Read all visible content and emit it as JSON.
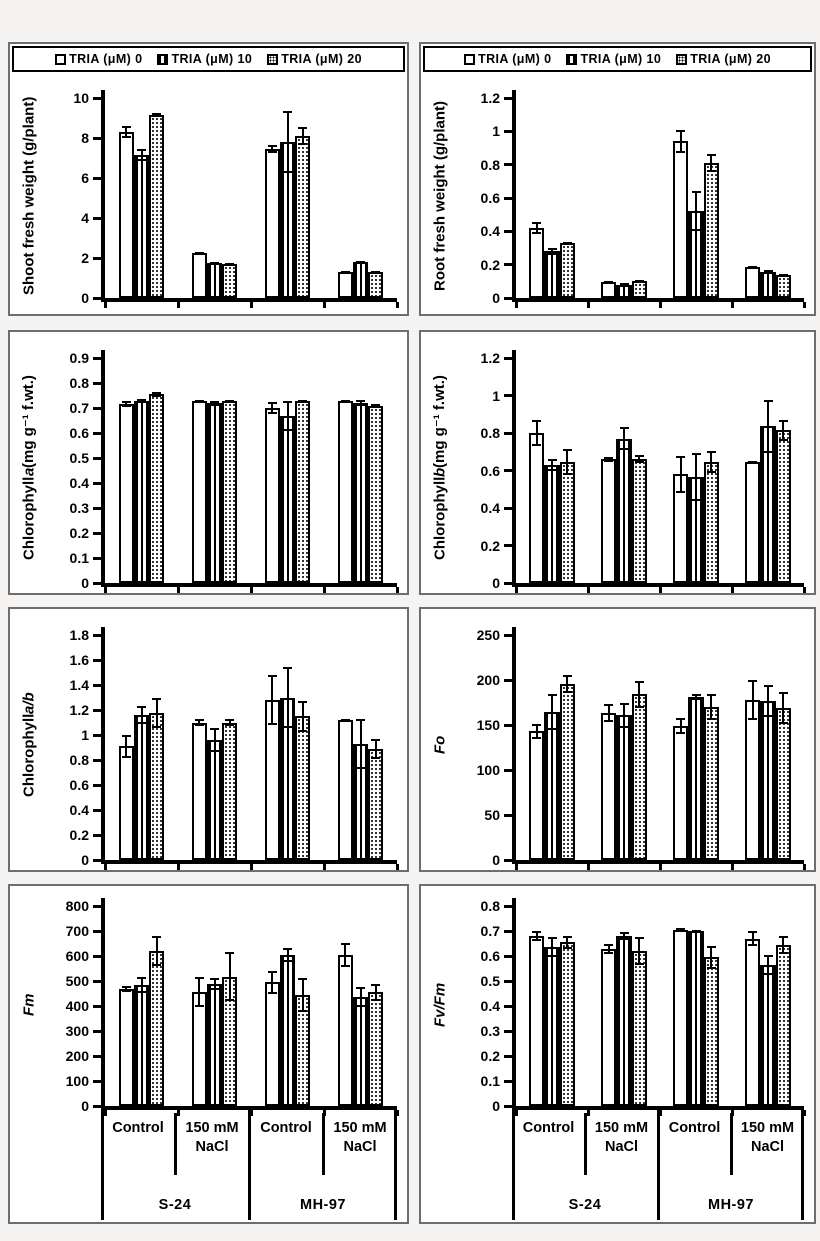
{
  "page": {
    "background": "#f5f4f2",
    "panel_background": "#ffffff",
    "panel_border": "#6e6e6e",
    "ink": "#000000"
  },
  "legend": {
    "items": [
      {
        "label": "TRIA (μM) 0",
        "pattern": "plain",
        "marker": "open-square"
      },
      {
        "label": "TRIA (μM) 10",
        "pattern": "vstripes",
        "marker": "vertical-striped-square"
      },
      {
        "label": "TRIA (μM) 20",
        "pattern": "dots",
        "marker": "dotted-square"
      }
    ]
  },
  "x_axis": {
    "treatments": [
      "Control",
      "150 mM\nNaCl",
      "Control",
      "150 mM\nNaCl"
    ],
    "cultivars": [
      "S-24",
      "MH-97"
    ]
  },
  "chart_data": [
    {
      "id": "shoot_fresh_weight",
      "type": "bar",
      "position": "row1-left",
      "ylabel_parts": [
        {
          "text": "Shoot fresh weight (g/plant)",
          "italic": false
        }
      ],
      "ylim": [
        0,
        10
      ],
      "ytick_values": [
        0,
        2,
        4,
        6,
        8,
        10
      ],
      "ytick_labels": [
        "0",
        "2",
        "4",
        "6",
        "8",
        "10"
      ],
      "categories": [
        "S-24 Control",
        "S-24 150 mM NaCl",
        "MH-97 Control",
        "MH-97 150 mM NaCl"
      ],
      "series": [
        {
          "name": "TRIA (μM) 0",
          "values": [
            8.3,
            2.25,
            7.45,
            1.3
          ],
          "errors": [
            0.3,
            0.05,
            0.2,
            0.05
          ]
        },
        {
          "name": "TRIA (μM) 10",
          "values": [
            7.15,
            1.75,
            7.8,
            1.8
          ],
          "errors": [
            0.3,
            0.05,
            1.55,
            0.05
          ]
        },
        {
          "name": "TRIA (μM) 20",
          "values": [
            9.15,
            1.7,
            8.1,
            1.3
          ],
          "errors": [
            0.12,
            0.05,
            0.45,
            0.05
          ]
        }
      ]
    },
    {
      "id": "root_fresh_weight",
      "type": "bar",
      "position": "row1-right",
      "ylabel_parts": [
        {
          "text": "Root fresh weight (g/plant)",
          "italic": false
        }
      ],
      "ylim": [
        0,
        1.2
      ],
      "ytick_values": [
        0,
        0.2,
        0.4,
        0.6,
        0.8,
        1,
        1.2
      ],
      "ytick_labels": [
        "0",
        "0.2",
        "0.4",
        "0.6",
        "0.8",
        "1",
        "1.2"
      ],
      "categories": [
        "S-24 Control",
        "S-24 150 mM NaCl",
        "MH-97 Control",
        "MH-97 150 mM NaCl"
      ],
      "series": [
        {
          "name": "TRIA (μM) 0",
          "values": [
            0.42,
            0.095,
            0.94,
            0.185
          ],
          "errors": [
            0.035,
            0.006,
            0.07,
            0.008
          ]
        },
        {
          "name": "TRIA (μM) 10",
          "values": [
            0.28,
            0.08,
            0.52,
            0.155
          ],
          "errors": [
            0.02,
            0.008,
            0.12,
            0.012
          ]
        },
        {
          "name": "TRIA (μM) 20",
          "values": [
            0.33,
            0.105,
            0.81,
            0.14
          ],
          "errors": [
            0.008,
            0.006,
            0.055,
            0.006
          ]
        }
      ]
    },
    {
      "id": "chlorophyll_a",
      "type": "bar",
      "position": "row2-left",
      "ylabel_parts": [
        {
          "text": "Chlorophyll ",
          "italic": false
        },
        {
          "text": "a",
          "italic": true
        },
        {
          "text": " (mg g⁻¹ f.wt.)",
          "italic": false
        }
      ],
      "ylim": [
        0,
        0.9
      ],
      "ytick_values": [
        0,
        0.1,
        0.2,
        0.3,
        0.4,
        0.5,
        0.6,
        0.7,
        0.8,
        0.9
      ],
      "ytick_labels": [
        "0",
        "0.1",
        "0.2",
        "0.3",
        "0.4",
        "0.5",
        "0.6",
        "0.7",
        "0.8",
        "0.9"
      ],
      "categories": [
        "S-24 Control",
        "S-24 150 mM NaCl",
        "MH-97 Control",
        "MH-97 150 mM NaCl"
      ],
      "series": [
        {
          "name": "TRIA (μM) 0",
          "values": [
            0.715,
            0.73,
            0.7,
            0.73
          ],
          "errors": [
            0.012,
            0.004,
            0.025,
            0.004
          ]
        },
        {
          "name": "TRIA (μM) 10",
          "values": [
            0.73,
            0.72,
            0.67,
            0.72
          ],
          "errors": [
            0.006,
            0.01,
            0.06,
            0.012
          ]
        },
        {
          "name": "TRIA (μM) 20",
          "values": [
            0.755,
            0.73,
            0.73,
            0.71
          ],
          "errors": [
            0.01,
            0.004,
            0.004,
            0.008
          ]
        }
      ]
    },
    {
      "id": "chlorophyll_b",
      "type": "bar",
      "position": "row2-right",
      "ylabel_parts": [
        {
          "text": "Chlorophyll ",
          "italic": false
        },
        {
          "text": "b",
          "italic": true
        },
        {
          "text": " (mg g⁻¹ f.wt.)",
          "italic": false
        }
      ],
      "ylim": [
        0,
        1.2
      ],
      "ytick_values": [
        0,
        0.2,
        0.4,
        0.6,
        0.8,
        1,
        1.2
      ],
      "ytick_labels": [
        "0",
        "0.2",
        "0.4",
        "0.6",
        "0.8",
        "1",
        "1.2"
      ],
      "categories": [
        "S-24 Control",
        "S-24 150 mM NaCl",
        "MH-97 Control",
        "MH-97 150 mM NaCl"
      ],
      "series": [
        {
          "name": "TRIA (μM) 0",
          "values": [
            0.8,
            0.66,
            0.58,
            0.645
          ],
          "errors": [
            0.07,
            0.012,
            0.1,
            0.004
          ]
        },
        {
          "name": "TRIA (μM) 10",
          "values": [
            0.63,
            0.77,
            0.565,
            0.835
          ],
          "errors": [
            0.03,
            0.06,
            0.13,
            0.14
          ]
        },
        {
          "name": "TRIA (μM) 20",
          "values": [
            0.645,
            0.66,
            0.645,
            0.815
          ],
          "errors": [
            0.07,
            0.022,
            0.06,
            0.055
          ]
        }
      ]
    },
    {
      "id": "chlorophyll_a_b",
      "type": "bar",
      "position": "row3-left",
      "ylabel_parts": [
        {
          "text": "Chlorophyll ",
          "italic": false
        },
        {
          "text": "a/b",
          "italic": true
        }
      ],
      "ylim": [
        0,
        1.8
      ],
      "ytick_values": [
        0,
        0.2,
        0.4,
        0.6,
        0.8,
        1,
        1.2,
        1.4,
        1.6,
        1.8
      ],
      "ytick_labels": [
        "0",
        "0.2",
        "0.4",
        "0.6",
        "0.8",
        "1",
        "1.2",
        "1.4",
        "1.6",
        "1.8"
      ],
      "categories": [
        "S-24 Control",
        "S-24 150 mM NaCl",
        "MH-97 Control",
        "MH-97 150 mM NaCl"
      ],
      "series": [
        {
          "name": "TRIA (μM) 0",
          "values": [
            0.91,
            1.1,
            1.28,
            1.12
          ],
          "errors": [
            0.09,
            0.025,
            0.2,
            0.004
          ]
        },
        {
          "name": "TRIA (μM) 10",
          "values": [
            1.16,
            0.96,
            1.3,
            0.93
          ],
          "errors": [
            0.07,
            0.095,
            0.245,
            0.2
          ]
        },
        {
          "name": "TRIA (μM) 20",
          "values": [
            1.18,
            1.1,
            1.15,
            0.89
          ],
          "errors": [
            0.12,
            0.03,
            0.125,
            0.08
          ]
        }
      ]
    },
    {
      "id": "fo",
      "type": "bar",
      "position": "row3-right",
      "ylabel_parts": [
        {
          "text": "Fo",
          "italic": true
        }
      ],
      "ylim": [
        0,
        250
      ],
      "ytick_values": [
        0,
        50,
        100,
        150,
        200,
        250
      ],
      "ytick_labels": [
        "0",
        "50",
        "100",
        "150",
        "200",
        "250"
      ],
      "categories": [
        "S-24 Control",
        "S-24 150 mM NaCl",
        "MH-97 Control",
        "MH-97 150 mM NaCl"
      ],
      "series": [
        {
          "name": "TRIA (μM) 0",
          "values": [
            143,
            163,
            149,
            178
          ],
          "errors": [
            8,
            10,
            9,
            22
          ]
        },
        {
          "name": "TRIA (μM) 10",
          "values": [
            164,
            161,
            181,
            177
          ],
          "errors": [
            20,
            14,
            3,
            18
          ]
        },
        {
          "name": "TRIA (μM) 20",
          "values": [
            196,
            184,
            170,
            169
          ],
          "errors": [
            10,
            15,
            14,
            18
          ]
        }
      ]
    },
    {
      "id": "fm",
      "type": "bar",
      "position": "row4-left",
      "ylabel_parts": [
        {
          "text": "Fm",
          "italic": true
        }
      ],
      "ylim": [
        0,
        800
      ],
      "ytick_values": [
        0,
        100,
        200,
        300,
        400,
        500,
        600,
        700,
        800
      ],
      "ytick_labels": [
        "0",
        "100",
        "200",
        "300",
        "400",
        "500",
        "600",
        "700",
        "800"
      ],
      "categories": [
        "S-24 Control",
        "S-24 150 mM NaCl",
        "MH-97 Control",
        "MH-97 150 mM NaCl"
      ],
      "series": [
        {
          "name": "TRIA (μM) 0",
          "values": [
            470,
            455,
            495,
            605
          ],
          "errors": [
            12,
            60,
            45,
            48
          ]
        },
        {
          "name": "TRIA (μM) 10",
          "values": [
            483,
            488,
            605,
            438
          ],
          "errors": [
            32,
            25,
            28,
            40
          ]
        },
        {
          "name": "TRIA (μM) 20",
          "values": [
            622,
            518,
            445,
            455
          ],
          "errors": [
            60,
            98,
            68,
            35
          ]
        }
      ]
    },
    {
      "id": "fv_fm",
      "type": "bar",
      "position": "row4-right",
      "ylabel_parts": [
        {
          "text": "Fv/Fm",
          "italic": true
        }
      ],
      "ylim": [
        0,
        0.8
      ],
      "ytick_values": [
        0,
        0.1,
        0.2,
        0.3,
        0.4,
        0.5,
        0.6,
        0.7,
        0.8
      ],
      "ytick_labels": [
        "0",
        "0.1",
        "0.2",
        "0.3",
        "0.4",
        "0.5",
        "0.6",
        "0.7",
        "0.8"
      ],
      "categories": [
        "S-24 Control",
        "S-24 150 mM NaCl",
        "MH-97 Control",
        "MH-97 150 mM NaCl"
      ],
      "series": [
        {
          "name": "TRIA (μM) 0",
          "values": [
            0.68,
            0.63,
            0.705,
            0.67
          ],
          "errors": [
            0.02,
            0.02,
            0.008,
            0.03
          ]
        },
        {
          "name": "TRIA (μM) 10",
          "values": [
            0.635,
            0.68,
            0.7,
            0.565
          ],
          "errors": [
            0.04,
            0.015,
            0.006,
            0.04
          ]
        },
        {
          "name": "TRIA (μM) 20",
          "values": [
            0.655,
            0.62,
            0.595,
            0.645
          ],
          "errors": [
            0.025,
            0.055,
            0.045,
            0.035
          ]
        }
      ]
    }
  ]
}
